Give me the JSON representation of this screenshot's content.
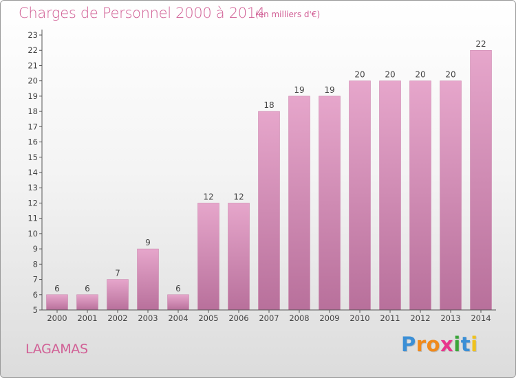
{
  "chart_data": {
    "type": "bar",
    "title": "Charges de Personnel 2000 à 2014",
    "subtitle": "(en milliers d'€)",
    "categories": [
      "2000",
      "2001",
      "2002",
      "2003",
      "2004",
      "2005",
      "2006",
      "2007",
      "2008",
      "2009",
      "2010",
      "2011",
      "2012",
      "2013",
      "2014"
    ],
    "values": [
      6,
      6,
      7,
      9,
      6,
      12,
      12,
      18,
      19,
      19,
      20,
      20,
      20,
      20,
      22
    ],
    "ylim": [
      5,
      23
    ],
    "yticks": [
      5,
      6,
      7,
      8,
      9,
      10,
      11,
      12,
      13,
      14,
      15,
      16,
      17,
      18,
      19,
      20,
      21,
      22,
      23
    ],
    "xlabel": "",
    "ylabel": "",
    "grid": false,
    "bar_color_top": "#e6a6cb",
    "bar_color_bottom": "#b8709b"
  },
  "footer": {
    "commune": "LAGAMAS",
    "logo_letters": [
      {
        "ch": "P",
        "color": "#3b8fd6"
      },
      {
        "ch": "r",
        "color": "#f08a1c"
      },
      {
        "ch": "o",
        "color": "#f08a1c"
      },
      {
        "ch": "x",
        "color": "#e8348c"
      },
      {
        "ch": "i",
        "color": "#3aa53a"
      },
      {
        "ch": "t",
        "color": "#3b8fd6"
      },
      {
        "ch": "i",
        "color": "#f0c21c"
      }
    ]
  },
  "colors": {
    "title": "#d15f95",
    "axis": "#555555",
    "text": "#444444"
  }
}
